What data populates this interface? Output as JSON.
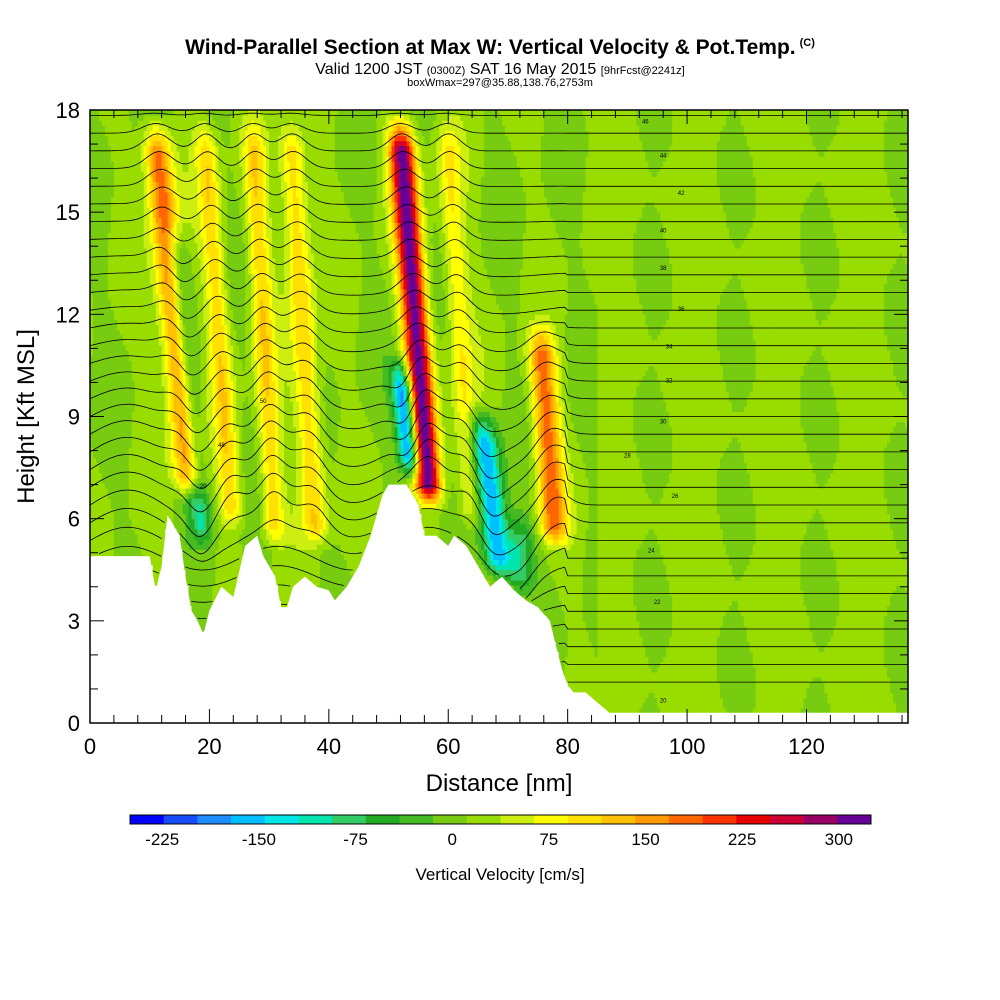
{
  "header": {
    "title": "Wind-Parallel Section at Max W: Vertical Velocity & Pot.Temp.",
    "copyright": "(C)",
    "valid_prefix": "Valid 1200 JST",
    "valid_utc": "(0300Z)",
    "valid_date": "SAT 16 May 2015",
    "forecast": "[9hrFcst@2241z]",
    "box_info": "boxWmax=297@35.88,138.76,2753m"
  },
  "chart_data": {
    "type": "heatmap",
    "xlabel": "Distance [nm]",
    "ylabel": "Height [Kft MSL]",
    "xlim": [
      0,
      137
    ],
    "ylim": [
      0,
      18
    ],
    "x_ticks": [
      "0",
      "20",
      "40",
      "60",
      "80",
      "100",
      "120"
    ],
    "y_ticks": [
      "0",
      "3",
      "6",
      "9",
      "12",
      "15",
      "18"
    ],
    "colorbar": {
      "title": "Vertical Velocity [cm/s]",
      "labels": [
        "-225",
        "-150",
        "-75",
        "0",
        "75",
        "150",
        "225",
        "300"
      ],
      "label_values": [
        -225,
        -150,
        -75,
        0,
        75,
        150,
        225,
        300
      ],
      "min": -250,
      "max": 325,
      "bins": [
        "#0000ff",
        "#1a4cff",
        "#1e8cff",
        "#00bfff",
        "#00e5e5",
        "#00e5b0",
        "#33cc66",
        "#22aa22",
        "#44bb22",
        "#77cc11",
        "#99dd00",
        "#ccee11",
        "#ffff00",
        "#ffe000",
        "#ffc000",
        "#ff9900",
        "#ff6600",
        "#ff3300",
        "#e60000",
        "#cc0033",
        "#990066",
        "#660099"
      ]
    },
    "terrain_kft": [
      [
        0,
        4.9
      ],
      [
        10,
        4.9
      ],
      [
        11,
        3.9
      ],
      [
        12,
        4.6
      ],
      [
        13,
        6.1
      ],
      [
        15,
        5.5
      ],
      [
        16,
        4.3
      ],
      [
        17,
        3.3
      ],
      [
        18,
        3.0
      ],
      [
        19,
        2.6
      ],
      [
        20,
        3.3
      ],
      [
        22,
        4.0
      ],
      [
        24,
        3.7
      ],
      [
        26,
        5.2
      ],
      [
        28,
        5.5
      ],
      [
        29,
        4.9
      ],
      [
        31,
        4.3
      ],
      [
        32,
        3.4
      ],
      [
        33,
        3.4
      ],
      [
        34,
        4.0
      ],
      [
        36,
        4.3
      ],
      [
        38,
        4.0
      ],
      [
        40,
        3.9
      ],
      [
        41,
        3.6
      ],
      [
        43,
        4.0
      ],
      [
        45,
        4.6
      ],
      [
        47,
        5.5
      ],
      [
        49,
        6.7
      ],
      [
        50,
        7.0
      ],
      [
        53,
        7.0
      ],
      [
        55,
        6.4
      ],
      [
        56,
        5.5
      ],
      [
        58,
        5.5
      ],
      [
        60,
        5.2
      ],
      [
        61,
        5.5
      ],
      [
        63,
        5.2
      ],
      [
        65,
        4.6
      ],
      [
        67,
        4.0
      ],
      [
        69,
        4.3
      ],
      [
        71,
        3.9
      ],
      [
        73,
        3.6
      ],
      [
        75,
        3.4
      ],
      [
        77,
        3.0
      ],
      [
        78,
        2.3
      ],
      [
        79,
        1.6
      ],
      [
        80,
        1.1
      ],
      [
        81,
        0.9
      ],
      [
        83,
        0.9
      ],
      [
        85,
        0.6
      ],
      [
        87,
        0.3
      ],
      [
        137,
        0.3
      ]
    ],
    "updrafts": [
      {
        "x": 17,
        "w": 1.6,
        "peak": 180,
        "ylo": 6.5,
        "yhi": 18,
        "tilt": -0.55
      },
      {
        "x": 24,
        "w": 1.3,
        "peak": 95,
        "ylo": 5.5,
        "yhi": 18,
        "tilt": -0.4
      },
      {
        "x": 31,
        "w": 1.3,
        "peak": 95,
        "ylo": 5.0,
        "yhi": 18,
        "tilt": -0.3
      },
      {
        "x": 38,
        "w": 1.5,
        "peak": 105,
        "ylo": 5.0,
        "yhi": 18,
        "tilt": -0.35
      },
      {
        "x": 57,
        "w": 1.5,
        "peak": 297,
        "ylo": 6.2,
        "yhi": 18,
        "tilt": -0.45
      },
      {
        "x": 64,
        "w": 1.4,
        "peak": 75,
        "ylo": 5.5,
        "yhi": 18,
        "tilt": -0.35
      },
      {
        "x": 78,
        "w": 1.6,
        "peak": 165,
        "ylo": 5.0,
        "yhi": 12,
        "tilt": -0.4
      }
    ],
    "downdrafts": [
      {
        "x": 19,
        "w": 1.3,
        "peak": -95,
        "ylo": 5.0,
        "yhi": 15,
        "tilt": -0.5
      },
      {
        "x": 54,
        "w": 1.2,
        "peak": -225,
        "ylo": 7.0,
        "yhi": 11,
        "tilt": -0.6
      },
      {
        "x": 69,
        "w": 1.6,
        "peak": -190,
        "ylo": 4.0,
        "yhi": 9.5,
        "tilt": -0.7
      },
      {
        "x": 72,
        "w": 1.6,
        "peak": -100,
        "ylo": 3.5,
        "yhi": 6.5,
        "tilt": 0.0
      }
    ],
    "theta_labels": [
      "20",
      "22",
      "24",
      "26",
      "28",
      "30",
      "32",
      "34",
      "36",
      "38",
      "40",
      "42",
      "44",
      "46",
      "48",
      "50"
    ]
  }
}
